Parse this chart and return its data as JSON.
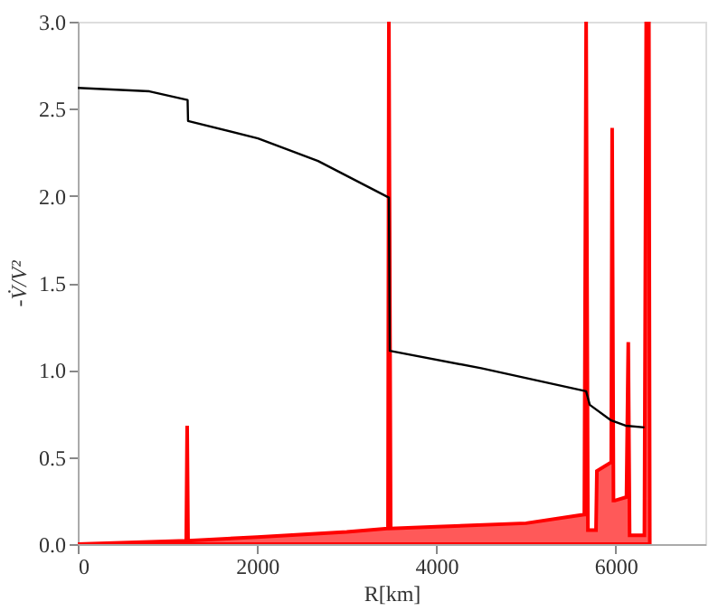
{
  "chart_data": {
    "type": "line",
    "xlabel": "R[km]",
    "ylabel": "-V̇/V²",
    "xlim": [
      0,
      7000
    ],
    "xticks": [
      0,
      2000,
      4000,
      6000
    ],
    "ylim": [
      0,
      3.0
    ],
    "yticks": [
      {
        "value": 0,
        "label": "0.0"
      },
      {
        "value": 0.5,
        "label": "0.5"
      },
      {
        "value": 1,
        "label": "1.0"
      },
      {
        "value": 1.5,
        "label": "1.5"
      },
      {
        "value": 2,
        "label": "2.0"
      },
      {
        "value": 2.5,
        "label": "2.5"
      },
      {
        "value": 3,
        "label": "3.0"
      }
    ],
    "grid": false,
    "series": [
      {
        "type": "area",
        "color": "#ff0000",
        "x": [
          0,
          1210,
          1220,
          1230,
          2000,
          3000,
          3460,
          3470,
          3490,
          4000,
          5000,
          5650,
          5670,
          5690,
          5780,
          5790,
          5950,
          5960,
          5975,
          5990,
          6120,
          6140,
          6155,
          6170,
          6320,
          6340,
          6370,
          6380
        ],
        "values": [
          0,
          0.02,
          0.68,
          0.02,
          0.04,
          0.07,
          0.09,
          3.0,
          0.09,
          0.1,
          0.12,
          0.17,
          3.0,
          0.08,
          0.08,
          0.42,
          0.47,
          2.39,
          0.25,
          0.25,
          0.27,
          1.16,
          0.05,
          0.05,
          0.05,
          3.0,
          3.0,
          0
        ]
      },
      {
        "color": "#000000",
        "x": [
          0,
          800,
          1225,
          1230,
          2010,
          2680,
          3470,
          3480,
          4500,
          5670,
          5710,
          5950,
          6110,
          6320
        ],
        "values": [
          2.62,
          2.6,
          2.55,
          2.43,
          2.33,
          2.2,
          1.99,
          1.11,
          1.01,
          0.878,
          0.8,
          0.71,
          0.68,
          0.67
        ]
      }
    ]
  }
}
